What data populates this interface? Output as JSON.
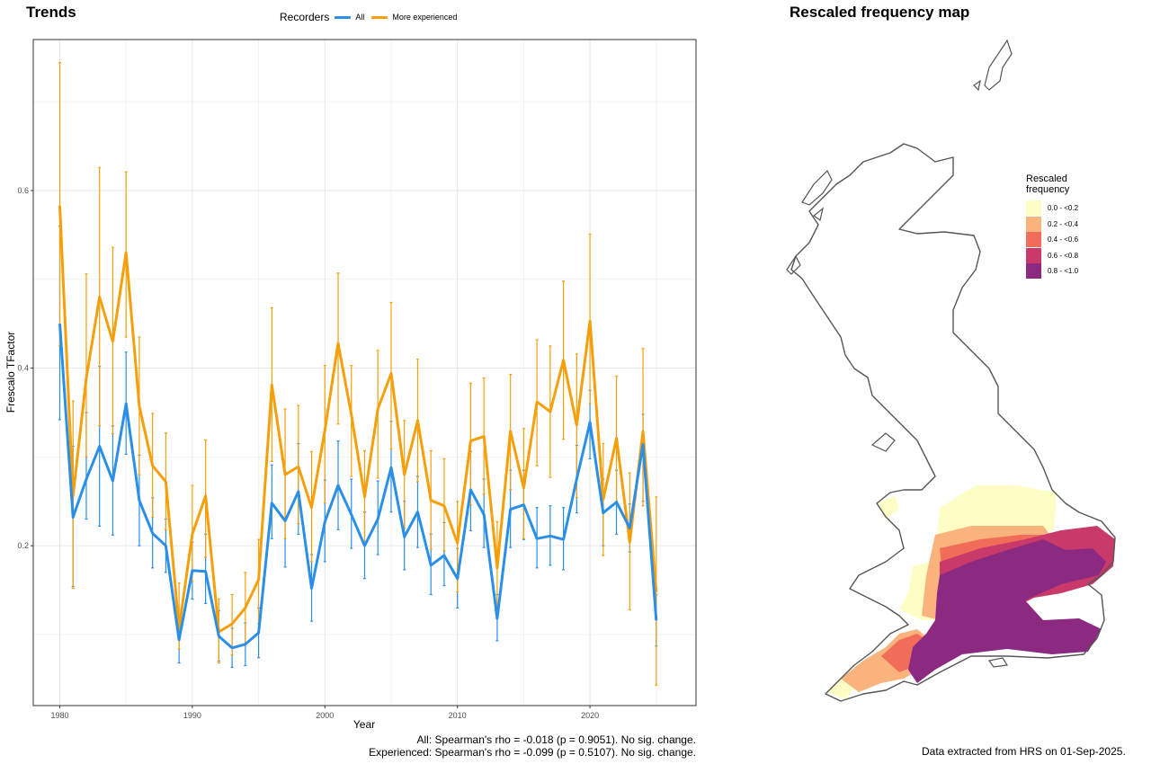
{
  "trends_title": "Trends",
  "map_title": "Rescaled frequency map",
  "legend": {
    "title": "Recorders",
    "entries": [
      {
        "label": "All",
        "color": "#2b8fe8"
      },
      {
        "label": "More experienced",
        "color": "#f5a00b"
      }
    ]
  },
  "chart_data": {
    "type": "line",
    "xlabel": "Year",
    "ylabel": "Frescalo TFactor",
    "xlim": [
      1978,
      2028
    ],
    "ylim": [
      0.02,
      0.77
    ],
    "xticks": [
      "1980",
      "1990",
      "2000",
      "2010",
      "2020"
    ],
    "xtick_values": [
      1980,
      1990,
      2000,
      2010,
      2020
    ],
    "yticks": [
      "0.2",
      "0.4",
      "0.6"
    ],
    "ytick_values": [
      0.2,
      0.4,
      0.6
    ],
    "grid": true,
    "legend_position": "top",
    "x": [
      1980,
      1981,
      1982,
      1983,
      1984,
      1985,
      1986,
      1987,
      1988,
      1989,
      1990,
      1991,
      1992,
      1993,
      1994,
      1995,
      1996,
      1997,
      1998,
      1999,
      2000,
      2001,
      2002,
      2003,
      2004,
      2005,
      2006,
      2007,
      2008,
      2009,
      2010,
      2011,
      2012,
      2013,
      2014,
      2015,
      2016,
      2017,
      2018,
      2019,
      2020,
      2021,
      2022,
      2023,
      2024,
      2025
    ],
    "series": [
      {
        "name": "All",
        "color": "#2b8fe8",
        "values": [
          0.45,
          0.232,
          0.275,
          0.312,
          0.273,
          0.36,
          0.251,
          0.214,
          0.2,
          0.094,
          0.172,
          0.171,
          0.098,
          0.085,
          0.089,
          0.102,
          0.248,
          0.228,
          0.261,
          0.152,
          0.227,
          0.268,
          0.235,
          0.2,
          0.23,
          0.288,
          0.21,
          0.238,
          0.178,
          0.189,
          0.163,
          0.263,
          0.235,
          0.118,
          0.241,
          0.246,
          0.208,
          0.211,
          0.207,
          0.275,
          0.339,
          0.237,
          0.249,
          0.22,
          0.314,
          0.116
        ],
        "lower": [
          0.342,
          0.154,
          0.23,
          0.222,
          0.212,
          0.303,
          0.2,
          0.175,
          0.17,
          0.068,
          0.14,
          0.135,
          0.07,
          0.063,
          0.065,
          0.074,
          0.208,
          0.176,
          0.213,
          0.115,
          0.182,
          0.218,
          0.197,
          0.163,
          0.19,
          0.238,
          0.173,
          0.198,
          0.145,
          0.155,
          0.13,
          0.217,
          0.198,
          0.093,
          0.198,
          0.207,
          0.175,
          0.178,
          0.173,
          0.237,
          0.298,
          0.2,
          0.213,
          0.193,
          0.25,
          0.087
        ],
        "upper": [
          0.56,
          0.312,
          0.35,
          0.402,
          0.335,
          0.418,
          0.302,
          0.254,
          0.23,
          0.121,
          0.204,
          0.213,
          0.127,
          0.107,
          0.113,
          0.13,
          0.291,
          0.283,
          0.315,
          0.19,
          0.274,
          0.318,
          0.275,
          0.238,
          0.273,
          0.34,
          0.25,
          0.278,
          0.213,
          0.226,
          0.197,
          0.306,
          0.275,
          0.145,
          0.285,
          0.285,
          0.243,
          0.245,
          0.243,
          0.313,
          0.375,
          0.275,
          0.285,
          0.247,
          0.348,
          0.145
        ]
      },
      {
        "name": "More experienced",
        "color": "#f5a00b",
        "values": [
          0.583,
          0.256,
          0.389,
          0.48,
          0.43,
          0.53,
          0.357,
          0.29,
          0.272,
          0.107,
          0.213,
          0.256,
          0.103,
          0.112,
          0.13,
          0.162,
          0.381,
          0.28,
          0.289,
          0.243,
          0.33,
          0.428,
          0.347,
          0.255,
          0.354,
          0.394,
          0.28,
          0.341,
          0.251,
          0.245,
          0.203,
          0.318,
          0.323,
          0.175,
          0.329,
          0.265,
          0.362,
          0.351,
          0.409,
          0.336,
          0.453,
          0.252,
          0.321,
          0.204,
          0.329,
          0.148
        ],
        "lower": [
          0.425,
          0.152,
          0.3,
          0.335,
          0.326,
          0.435,
          0.28,
          0.232,
          0.218,
          0.084,
          0.16,
          0.187,
          0.068,
          0.077,
          0.088,
          0.112,
          0.295,
          0.208,
          0.225,
          0.182,
          0.248,
          0.337,
          0.278,
          0.203,
          0.276,
          0.309,
          0.22,
          0.272,
          0.196,
          0.194,
          0.148,
          0.246,
          0.258,
          0.13,
          0.263,
          0.208,
          0.29,
          0.277,
          0.32,
          0.254,
          0.36,
          0.189,
          0.25,
          0.128,
          0.245,
          0.043
        ],
        "upper": [
          0.744,
          0.363,
          0.506,
          0.626,
          0.536,
          0.621,
          0.435,
          0.349,
          0.327,
          0.158,
          0.268,
          0.319,
          0.14,
          0.145,
          0.17,
          0.207,
          0.468,
          0.354,
          0.358,
          0.306,
          0.403,
          0.507,
          0.403,
          0.307,
          0.42,
          0.474,
          0.341,
          0.41,
          0.307,
          0.298,
          0.25,
          0.383,
          0.389,
          0.227,
          0.393,
          0.332,
          0.432,
          0.425,
          0.498,
          0.416,
          0.551,
          0.315,
          0.391,
          0.282,
          0.422,
          0.255
        ]
      }
    ]
  },
  "stats": {
    "line1": "All: Spearman's rho = -0.018 (p = 0.9051). No sig. change.",
    "line2": "Experienced: Spearman's rho = -0.099 (p = 0.5107). No sig. change."
  },
  "map_legend": {
    "title_line1": "Rescaled",
    "title_line2": "frequency",
    "classes": [
      {
        "label": "0.0 - <0.2",
        "color": "#fefdc5"
      },
      {
        "label": "0.2 - <0.4",
        "color": "#fbb37d"
      },
      {
        "label": "0.4 - <0.6",
        "color": "#f26c5a"
      },
      {
        "label": "0.6 - <0.8",
        "color": "#c93a6a"
      },
      {
        "label": "0.8 - <1.0",
        "color": "#8c2981"
      }
    ]
  },
  "extract_note": "Data extracted from HRS on 01-Sep-2025."
}
